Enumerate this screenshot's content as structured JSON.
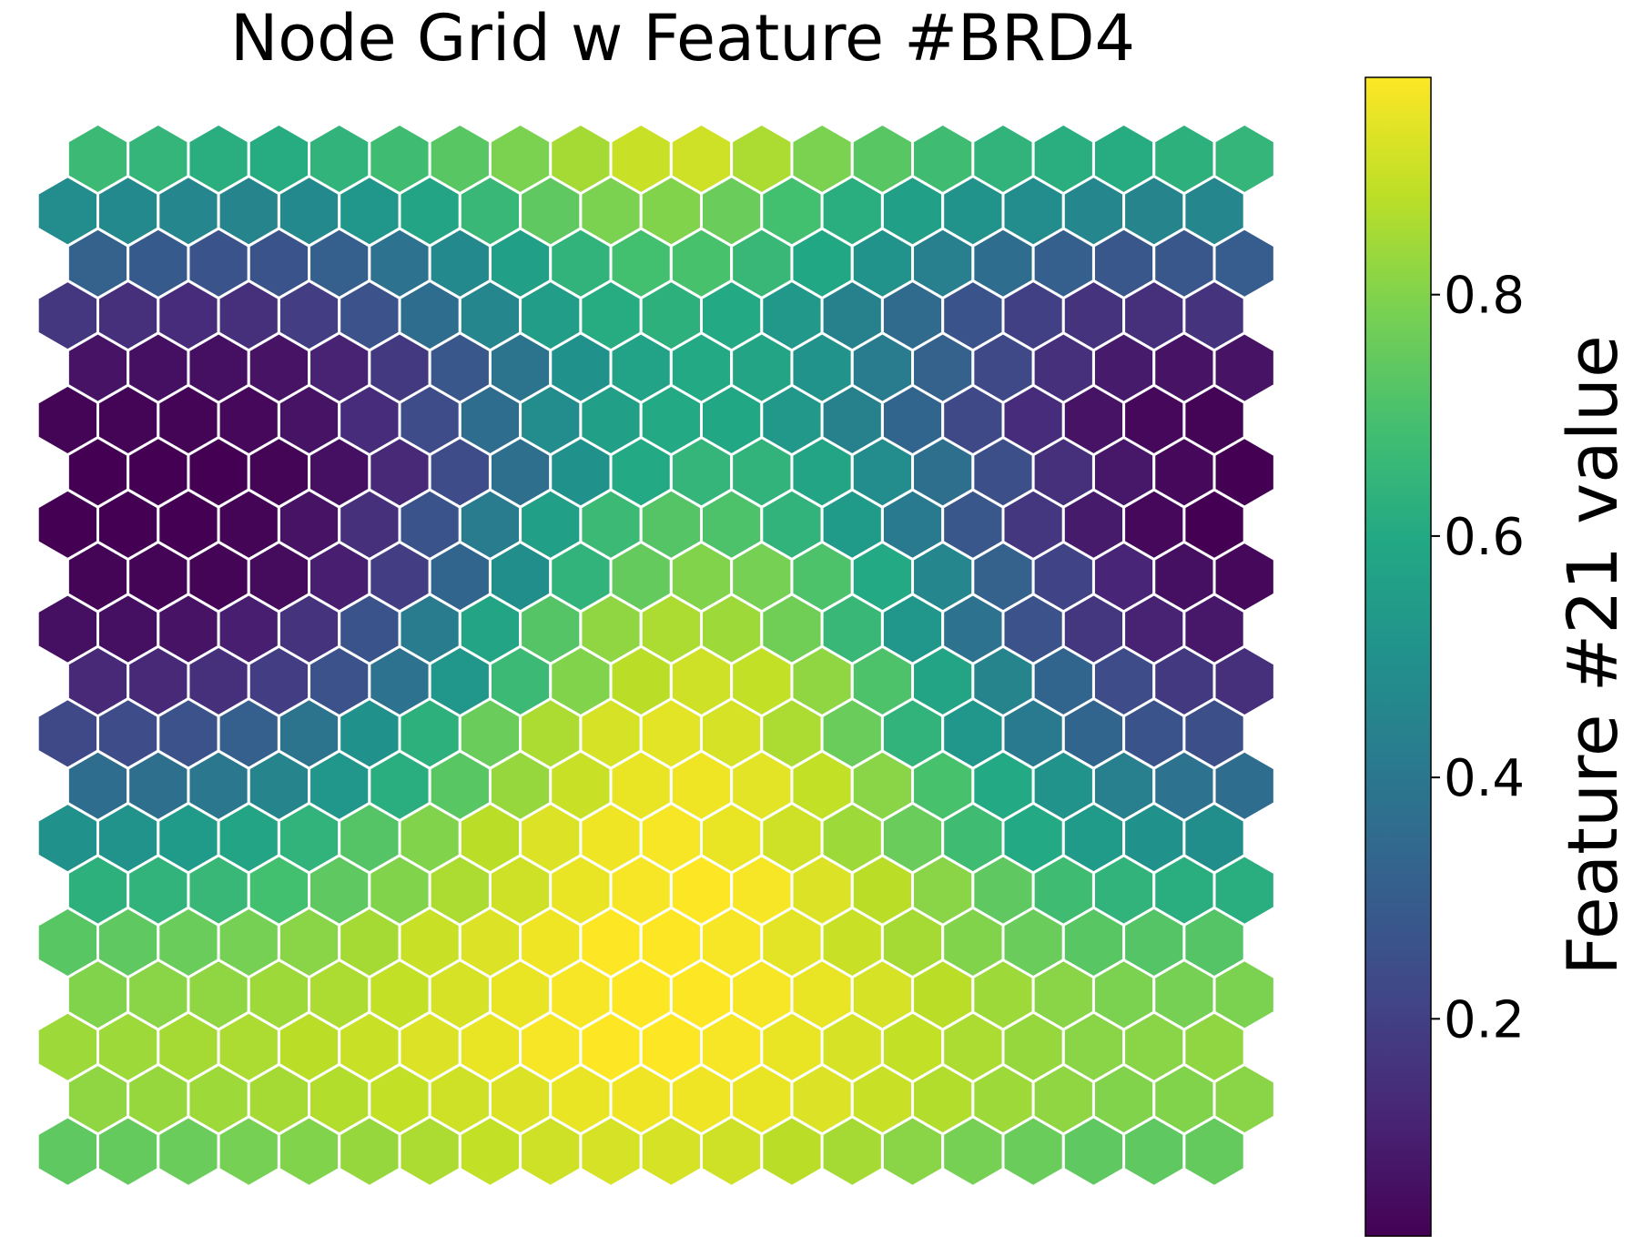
{
  "chart_data": {
    "type": "heatmap",
    "subtype": "hexagonal-grid",
    "title": "Node Grid w Feature #BRD4",
    "xlabel": "",
    "ylabel": "",
    "grid": false,
    "rows": 20,
    "cols": 20,
    "row_order": "top-to-bottom",
    "values": [
      [
        0.67,
        0.65,
        0.62,
        0.61,
        0.64,
        0.68,
        0.73,
        0.79,
        0.85,
        0.9,
        0.91,
        0.86,
        0.79,
        0.73,
        0.68,
        0.64,
        0.62,
        0.61,
        0.63,
        0.65
      ],
      [
        0.48,
        0.47,
        0.46,
        0.45,
        0.47,
        0.52,
        0.58,
        0.66,
        0.74,
        0.79,
        0.8,
        0.76,
        0.69,
        0.62,
        0.56,
        0.51,
        0.48,
        0.46,
        0.45,
        0.46
      ],
      [
        0.32,
        0.29,
        0.27,
        0.27,
        0.31,
        0.38,
        0.47,
        0.56,
        0.64,
        0.69,
        0.7,
        0.66,
        0.59,
        0.51,
        0.43,
        0.36,
        0.31,
        0.28,
        0.28,
        0.3
      ],
      [
        0.17,
        0.15,
        0.14,
        0.15,
        0.19,
        0.26,
        0.36,
        0.46,
        0.55,
        0.61,
        0.63,
        0.6,
        0.53,
        0.44,
        0.35,
        0.27,
        0.2,
        0.16,
        0.15,
        0.16
      ],
      [
        0.07,
        0.06,
        0.06,
        0.07,
        0.11,
        0.18,
        0.28,
        0.39,
        0.5,
        0.57,
        0.6,
        0.58,
        0.51,
        0.42,
        0.32,
        0.23,
        0.15,
        0.09,
        0.07,
        0.07
      ],
      [
        0.03,
        0.03,
        0.03,
        0.04,
        0.07,
        0.14,
        0.24,
        0.36,
        0.48,
        0.56,
        0.6,
        0.59,
        0.53,
        0.44,
        0.33,
        0.23,
        0.14,
        0.07,
        0.04,
        0.03
      ],
      [
        0.02,
        0.02,
        0.02,
        0.03,
        0.06,
        0.13,
        0.24,
        0.37,
        0.5,
        0.6,
        0.65,
        0.64,
        0.58,
        0.48,
        0.37,
        0.25,
        0.15,
        0.08,
        0.04,
        0.02
      ],
      [
        0.02,
        0.02,
        0.02,
        0.03,
        0.07,
        0.15,
        0.27,
        0.42,
        0.56,
        0.67,
        0.72,
        0.71,
        0.64,
        0.54,
        0.41,
        0.28,
        0.17,
        0.09,
        0.04,
        0.02
      ],
      [
        0.03,
        0.03,
        0.03,
        0.05,
        0.1,
        0.19,
        0.33,
        0.49,
        0.64,
        0.75,
        0.8,
        0.78,
        0.71,
        0.6,
        0.46,
        0.32,
        0.21,
        0.12,
        0.06,
        0.04
      ],
      [
        0.06,
        0.06,
        0.07,
        0.1,
        0.16,
        0.27,
        0.42,
        0.58,
        0.72,
        0.82,
        0.86,
        0.84,
        0.77,
        0.66,
        0.52,
        0.38,
        0.26,
        0.17,
        0.11,
        0.08
      ],
      [
        0.13,
        0.13,
        0.15,
        0.19,
        0.26,
        0.38,
        0.52,
        0.67,
        0.8,
        0.88,
        0.91,
        0.89,
        0.82,
        0.71,
        0.58,
        0.45,
        0.33,
        0.24,
        0.18,
        0.15
      ],
      [
        0.23,
        0.24,
        0.26,
        0.31,
        0.39,
        0.5,
        0.63,
        0.76,
        0.86,
        0.92,
        0.94,
        0.92,
        0.86,
        0.76,
        0.64,
        0.52,
        0.41,
        0.33,
        0.27,
        0.25
      ],
      [
        0.36,
        0.37,
        0.4,
        0.45,
        0.52,
        0.62,
        0.73,
        0.83,
        0.9,
        0.95,
        0.96,
        0.94,
        0.89,
        0.81,
        0.7,
        0.6,
        0.51,
        0.43,
        0.38,
        0.36
      ],
      [
        0.5,
        0.51,
        0.54,
        0.58,
        0.64,
        0.72,
        0.8,
        0.88,
        0.93,
        0.96,
        0.97,
        0.95,
        0.91,
        0.84,
        0.76,
        0.68,
        0.6,
        0.54,
        0.5,
        0.49
      ],
      [
        0.63,
        0.64,
        0.66,
        0.69,
        0.74,
        0.8,
        0.86,
        0.91,
        0.95,
        0.97,
        0.98,
        0.97,
        0.93,
        0.88,
        0.81,
        0.74,
        0.68,
        0.64,
        0.62,
        0.62
      ],
      [
        0.73,
        0.74,
        0.76,
        0.78,
        0.81,
        0.85,
        0.9,
        0.93,
        0.96,
        0.98,
        0.98,
        0.97,
        0.94,
        0.9,
        0.85,
        0.8,
        0.76,
        0.73,
        0.72,
        0.72
      ],
      [
        0.8,
        0.81,
        0.82,
        0.84,
        0.86,
        0.89,
        0.92,
        0.95,
        0.97,
        0.98,
        0.98,
        0.97,
        0.95,
        0.92,
        0.88,
        0.84,
        0.81,
        0.79,
        0.78,
        0.79
      ],
      [
        0.84,
        0.84,
        0.85,
        0.86,
        0.88,
        0.9,
        0.93,
        0.95,
        0.97,
        0.98,
        0.98,
        0.97,
        0.95,
        0.92,
        0.89,
        0.86,
        0.83,
        0.81,
        0.81,
        0.82
      ],
      [
        0.82,
        0.83,
        0.84,
        0.85,
        0.87,
        0.89,
        0.91,
        0.93,
        0.95,
        0.96,
        0.96,
        0.95,
        0.93,
        0.9,
        0.87,
        0.84,
        0.82,
        0.8,
        0.8,
        0.81
      ],
      [
        0.74,
        0.75,
        0.76,
        0.78,
        0.8,
        0.83,
        0.86,
        0.89,
        0.91,
        0.92,
        0.92,
        0.91,
        0.88,
        0.85,
        0.81,
        0.78,
        0.76,
        0.74,
        0.74,
        0.75
      ]
    ],
    "colormap": "viridis",
    "colorbar": {
      "label": "Feature #21 value",
      "range": [
        0.02,
        0.98
      ],
      "ticks": [
        0.2,
        0.4,
        0.6,
        0.8
      ],
      "tick_labels": [
        "0.2",
        "0.4",
        "0.6",
        "0.8"
      ],
      "placement": "right"
    },
    "cell_border_color": "#ffffff"
  }
}
